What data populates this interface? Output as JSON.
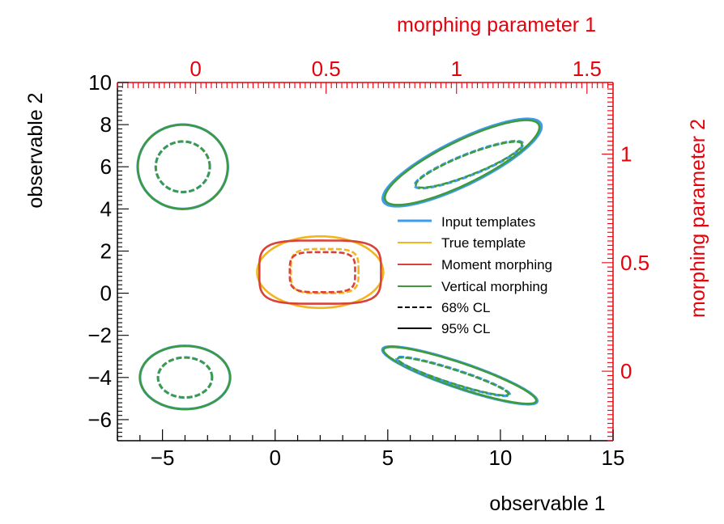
{
  "chart_data": {
    "type": "scatter",
    "subtype": "confidence-contour-plot",
    "xlabel": "observable 1",
    "ylabel": "observable 2",
    "x2label": "morphing parameter 1",
    "y2label": "morphing parameter 2",
    "xlim": [
      -7,
      15
    ],
    "ylim": [
      -7,
      10
    ],
    "x2lim": [
      -0.3,
      1.6
    ],
    "y2lim": [
      -0.32,
      1.33
    ],
    "xticks": [
      -5,
      0,
      5,
      10,
      15
    ],
    "yticks": [
      -6,
      -4,
      -2,
      0,
      2,
      4,
      6,
      8,
      10
    ],
    "x2ticks": [
      0,
      0.5,
      1,
      1.5
    ],
    "x2tick_labels": [
      "0",
      "0.5",
      "1",
      "1.5"
    ],
    "y2ticks": [
      0,
      0.5,
      1
    ],
    "y2tick_labels": [
      "0",
      "0.5",
      "1"
    ],
    "axis_color": "#000000",
    "secondary_axis_color": "#e8000b",
    "legend": {
      "placement": "center-right",
      "entries": [
        {
          "label": "Input templates",
          "color": "#3d9cf0",
          "dash": false
        },
        {
          "label": "True template",
          "color": "#f2b51c",
          "dash": false
        },
        {
          "label": "Moment morphing",
          "color": "#d9423b",
          "dash": false
        },
        {
          "label": "Vertical morphing",
          "color": "#3f9a3c",
          "dash": false
        },
        {
          "label": "68% CL",
          "color": "#000000",
          "dash": true
        },
        {
          "label": "95% CL",
          "color": "#000000",
          "dash": false
        }
      ]
    },
    "contours": [
      {
        "group": "top-left",
        "series": "Input templates",
        "level": "95% CL",
        "shape": "ellipse",
        "center": [
          -4.1,
          6.0
        ],
        "radii": [
          2.0,
          2.0
        ],
        "angle_deg": 0
      },
      {
        "group": "top-left",
        "series": "Vertical morphing",
        "level": "95% CL",
        "shape": "ellipse",
        "center": [
          -4.1,
          6.0
        ],
        "radii": [
          2.0,
          2.0
        ],
        "angle_deg": 0
      },
      {
        "group": "top-left",
        "series": "Input templates",
        "level": "68% CL",
        "shape": "ellipse",
        "center": [
          -4.1,
          6.0
        ],
        "radii": [
          1.2,
          1.2
        ],
        "angle_deg": 0
      },
      {
        "group": "top-left",
        "series": "Vertical morphing",
        "level": "68% CL",
        "shape": "ellipse",
        "center": [
          -4.1,
          6.0
        ],
        "radii": [
          1.2,
          1.2
        ],
        "angle_deg": 0
      },
      {
        "group": "top-right",
        "series": "Input templates",
        "level": "95% CL",
        "shape": "ellipse",
        "center": [
          8.3,
          6.2
        ],
        "radii": [
          3.95,
          1.05
        ],
        "angle_deg": 28
      },
      {
        "group": "top-right",
        "series": "Vertical morphing",
        "level": "95% CL",
        "shape": "ellipse",
        "center": [
          8.3,
          6.2
        ],
        "radii": [
          3.85,
          1.0
        ],
        "angle_deg": 28
      },
      {
        "group": "top-right",
        "series": "Input templates",
        "level": "68% CL",
        "shape": "ellipse",
        "center": [
          8.6,
          6.1
        ],
        "radii": [
          2.6,
          0.5
        ],
        "angle_deg": 23
      },
      {
        "group": "top-right",
        "series": "Vertical morphing",
        "level": "68% CL",
        "shape": "ellipse",
        "center": [
          8.6,
          6.1
        ],
        "radii": [
          2.55,
          0.48
        ],
        "angle_deg": 23
      },
      {
        "group": "center",
        "series": "True template",
        "level": "95% CL",
        "shape": "ellipse",
        "center": [
          2.0,
          1.0
        ],
        "radii": [
          2.8,
          1.7
        ],
        "angle_deg": 0
      },
      {
        "group": "center",
        "series": "Moment morphing",
        "level": "95% CL",
        "shape": "superellipse",
        "center": [
          2.0,
          1.0
        ],
        "radii": [
          2.7,
          1.5
        ],
        "angle_deg": 0
      },
      {
        "group": "center",
        "series": "True template",
        "level": "68% CL",
        "shape": "superellipse",
        "center": [
          2.2,
          1.05
        ],
        "radii": [
          1.5,
          1.05
        ],
        "angle_deg": 0
      },
      {
        "group": "center",
        "series": "Moment morphing",
        "level": "68% CL",
        "shape": "superellipse",
        "center": [
          2.1,
          1.0
        ],
        "radii": [
          1.45,
          0.95
        ],
        "angle_deg": 0
      },
      {
        "group": "bottom-left",
        "series": "Input templates",
        "level": "95% CL",
        "shape": "ellipse",
        "center": [
          -4.0,
          -4.0
        ],
        "radii": [
          2.0,
          1.5
        ],
        "angle_deg": 0
      },
      {
        "group": "bottom-left",
        "series": "Vertical morphing",
        "level": "95% CL",
        "shape": "ellipse",
        "center": [
          -4.0,
          -4.0
        ],
        "radii": [
          2.0,
          1.5
        ],
        "angle_deg": 0
      },
      {
        "group": "bottom-left",
        "series": "Input templates",
        "level": "68% CL",
        "shape": "ellipse",
        "center": [
          -4.0,
          -4.0
        ],
        "radii": [
          1.2,
          0.95
        ],
        "angle_deg": 0
      },
      {
        "group": "bottom-left",
        "series": "Vertical morphing",
        "level": "68% CL",
        "shape": "ellipse",
        "center": [
          -4.0,
          -4.0
        ],
        "radii": [
          1.2,
          0.95
        ],
        "angle_deg": 0
      },
      {
        "group": "bottom-right",
        "series": "Input templates",
        "level": "95% CL",
        "shape": "ellipse",
        "center": [
          8.2,
          -3.9
        ],
        "radii": [
          3.65,
          0.6
        ],
        "angle_deg": -20
      },
      {
        "group": "bottom-right",
        "series": "Vertical morphing",
        "level": "95% CL",
        "shape": "ellipse",
        "center": [
          8.2,
          -3.9
        ],
        "radii": [
          3.6,
          0.58
        ],
        "angle_deg": -20
      },
      {
        "group": "bottom-right",
        "series": "Input templates",
        "level": "68% CL",
        "shape": "ellipse",
        "center": [
          7.9,
          -3.95
        ],
        "radii": [
          2.65,
          0.34
        ],
        "angle_deg": -19
      },
      {
        "group": "bottom-right",
        "series": "Vertical morphing",
        "level": "68% CL",
        "shape": "ellipse",
        "center": [
          7.9,
          -3.95
        ],
        "radii": [
          2.6,
          0.32
        ],
        "angle_deg": -19
      }
    ]
  }
}
